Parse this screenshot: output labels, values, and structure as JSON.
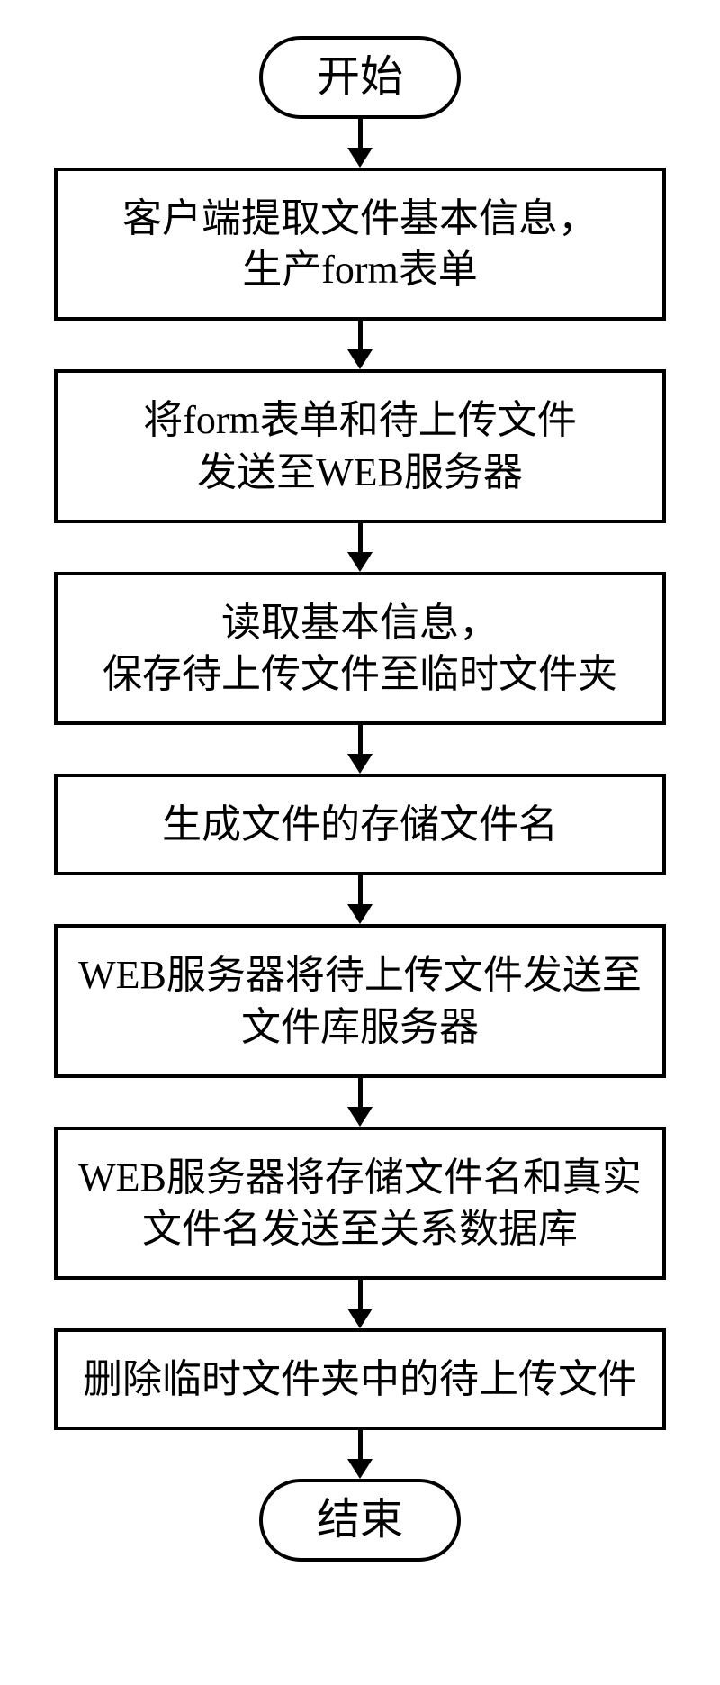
{
  "flowchart": {
    "type": "flowchart",
    "direction": "top-to-bottom",
    "background_color": "#ffffff",
    "border_color": "#000000",
    "border_width": 4,
    "font_family": "SimSun",
    "font_size": 44,
    "terminal_radius": 50,
    "process_width": 680,
    "arrow_height": 54,
    "arrow_head_size": 22,
    "nodes": [
      {
        "id": "start",
        "shape": "terminal",
        "label": "开始"
      },
      {
        "id": "step1",
        "shape": "process",
        "label": "客户端提取文件基本信息，\n生产form表单"
      },
      {
        "id": "step2",
        "shape": "process",
        "label": "将form表单和待上传文件\n发送至WEB服务器"
      },
      {
        "id": "step3",
        "shape": "process",
        "label": "读取基本信息，\n保存待上传文件至临时文件夹"
      },
      {
        "id": "step4",
        "shape": "process",
        "label": "生成文件的存储文件名"
      },
      {
        "id": "step5",
        "shape": "process",
        "label": "WEB服务器将待上传文件发送至\n文件库服务器"
      },
      {
        "id": "step6",
        "shape": "process",
        "label": "WEB服务器将存储文件名和真实\n文件名发送至关系数据库"
      },
      {
        "id": "step7",
        "shape": "process",
        "label": "删除临时文件夹中的待上传文件"
      },
      {
        "id": "end",
        "shape": "terminal",
        "label": "结束"
      }
    ],
    "edges": [
      {
        "from": "start",
        "to": "step1"
      },
      {
        "from": "step1",
        "to": "step2"
      },
      {
        "from": "step2",
        "to": "step3"
      },
      {
        "from": "step3",
        "to": "step4"
      },
      {
        "from": "step4",
        "to": "step5"
      },
      {
        "from": "step5",
        "to": "step6"
      },
      {
        "from": "step6",
        "to": "step7"
      },
      {
        "from": "step7",
        "to": "end"
      }
    ]
  }
}
